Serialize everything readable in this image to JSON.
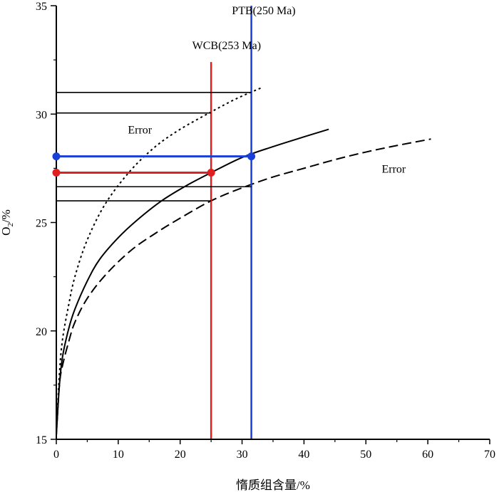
{
  "chart_data": {
    "type": "line",
    "title": "",
    "xlabel": "惰质组含量/%",
    "ylabel_main": "O",
    "ylabel_sub": "2",
    "ylabel_suffix": "/%",
    "xlim": [
      0,
      70
    ],
    "ylim": [
      15,
      35
    ],
    "xticks": [
      0,
      10,
      20,
      30,
      40,
      50,
      60,
      70
    ],
    "yticks": [
      15,
      20,
      25,
      30,
      35
    ],
    "grid": false,
    "series": [
      {
        "name": "model-curve",
        "style": "solid",
        "color": "#000000",
        "x": [
          0,
          0.5,
          1,
          2,
          3,
          5,
          7,
          10,
          13,
          17,
          21,
          25,
          30,
          35,
          40,
          44
        ],
        "y": [
          15.2,
          17.5,
          18.8,
          20.1,
          21.0,
          22.3,
          23.3,
          24.3,
          25.1,
          26.0,
          26.7,
          27.3,
          28.0,
          28.5,
          28.95,
          29.3
        ]
      },
      {
        "name": "upper-error-curve",
        "style": "dotted",
        "color": "#000000",
        "x": [
          0,
          0.5,
          1,
          2,
          3,
          5,
          8,
          12,
          16,
          20,
          25,
          29,
          33
        ],
        "y": [
          15.2,
          18.0,
          19.6,
          21.2,
          22.5,
          24.2,
          25.9,
          27.4,
          28.5,
          29.3,
          30.1,
          30.7,
          31.2
        ]
      },
      {
        "name": "lower-error-curve",
        "style": "dashed",
        "color": "#000000",
        "x": [
          0,
          0.5,
          1,
          2,
          3,
          5,
          8,
          12,
          16,
          20,
          25,
          30,
          35,
          40,
          45,
          50,
          55,
          60.5
        ],
        "y": [
          15.2,
          17.5,
          18.4,
          19.5,
          20.4,
          21.5,
          22.6,
          23.7,
          24.5,
          25.2,
          26.0,
          26.6,
          27.1,
          27.5,
          27.9,
          28.25,
          28.55,
          28.85
        ]
      }
    ],
    "reference_lines": [
      {
        "name": "wcb-vertical",
        "orientation": "vertical",
        "x": 25,
        "y_from": 15,
        "y_to": 32.4,
        "color": "#e02020"
      },
      {
        "name": "ptb-vertical",
        "orientation": "vertical",
        "x": 31.5,
        "y_from": 15,
        "y_to": 35,
        "color": "#1a3fd6"
      },
      {
        "name": "upper-error-ptb-line",
        "orientation": "horizontal",
        "y": 31.0,
        "x_from": 0,
        "x_to": 31.5,
        "color": "#000000"
      },
      {
        "name": "upper-error-wcb-line",
        "orientation": "horizontal",
        "y": 30.05,
        "x_from": 0,
        "x_to": 25,
        "color": "#000000"
      },
      {
        "name": "lower-error-ptb-line",
        "orientation": "horizontal",
        "y": 26.65,
        "x_from": 0,
        "x_to": 31.5,
        "color": "#000000"
      },
      {
        "name": "lower-error-wcb-line",
        "orientation": "horizontal",
        "y": 26.0,
        "x_from": 0,
        "x_to": 25,
        "color": "#000000"
      }
    ],
    "highlight_lines": [
      {
        "name": "ptb-o2-line",
        "y": 28.05,
        "x_from": 0,
        "x_to": 31.5,
        "color": "#1a3fd6"
      },
      {
        "name": "wcb-o2-line",
        "y": 27.3,
        "x_from": 0,
        "x_to": 25,
        "color": "#e02020"
      }
    ],
    "points": [
      {
        "name": "ptb-point-axis",
        "x": 0,
        "y": 28.05,
        "color": "#1a3fd6"
      },
      {
        "name": "ptb-point-curve",
        "x": 31.5,
        "y": 28.05,
        "color": "#1a3fd6"
      },
      {
        "name": "wcb-point-axis",
        "x": 0,
        "y": 27.3,
        "color": "#e02020"
      },
      {
        "name": "wcb-point-curve",
        "x": 25,
        "y": 27.3,
        "color": "#e02020"
      }
    ],
    "annotations": [
      {
        "name": "label-ptb",
        "text": "PTB(250 Ma)",
        "x": 33.5,
        "y": 34.6
      },
      {
        "name": "label-wcb",
        "text": "WCB(253 Ma)",
        "x": 27.5,
        "y": 33.0
      },
      {
        "name": "label-error-upper",
        "text": "Error",
        "x": 13.5,
        "y": 29.1
      },
      {
        "name": "label-error-lower",
        "text": "Error",
        "x": 54.5,
        "y": 27.3
      }
    ]
  }
}
